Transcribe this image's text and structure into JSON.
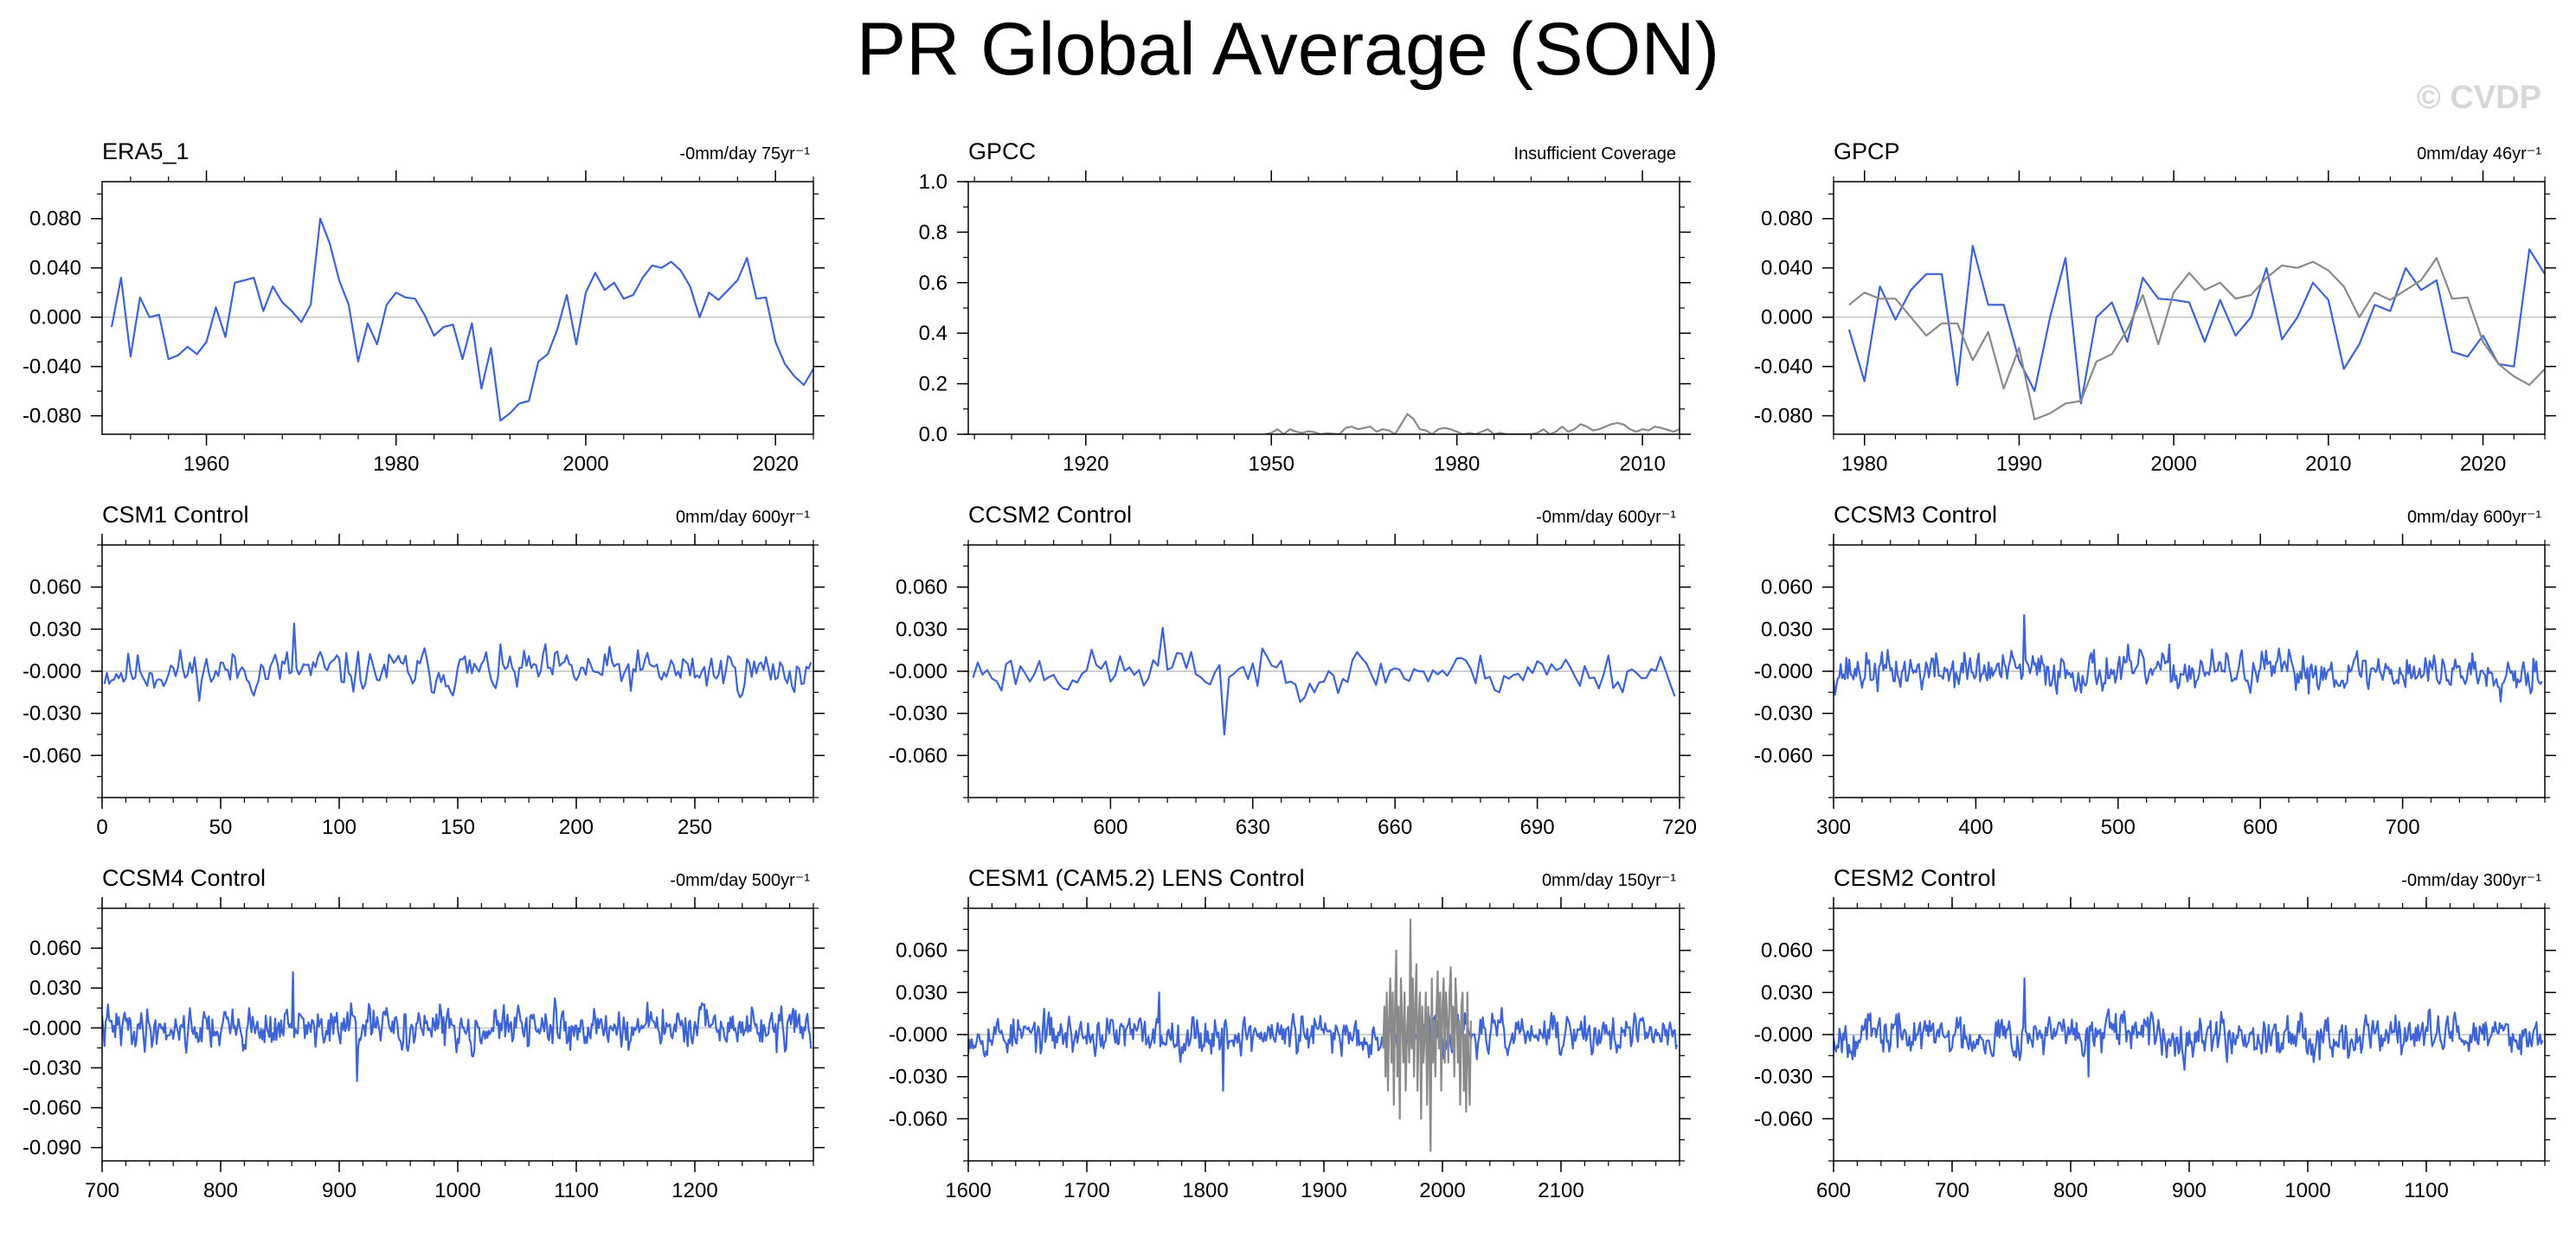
{
  "figure": {
    "title": "PR Global Average (SON)",
    "watermark": "© CVDP",
    "colors": {
      "model": "#3c64d6",
      "observed": "#8a8a8a",
      "zero": "#cfcfcf",
      "axis": "#000000"
    }
  },
  "chart_data": [
    {
      "type": "line",
      "title": "ERA5_1",
      "trend_label": "-0mm/day 75yr⁻¹",
      "xlim": [
        1949,
        2024
      ],
      "ylim": [
        -0.095,
        0.11
      ],
      "xticks": [
        1960,
        1980,
        2000,
        2020
      ],
      "yticks": [
        -0.08,
        -0.04,
        0.0,
        0.04,
        0.08
      ],
      "ytick_labels": [
        "-0.080",
        "-0.040",
        "0.000",
        "0.040",
        "0.080"
      ],
      "series": [
        {
          "role": "model",
          "x_start": 1950,
          "x_step": 1,
          "values": [
            -0.008,
            0.032,
            -0.032,
            0.016,
            0.0,
            0.002,
            -0.034,
            -0.031,
            -0.024,
            -0.03,
            -0.02,
            0.008,
            -0.016,
            0.028,
            0.03,
            0.032,
            0.005,
            0.025,
            0.012,
            0.005,
            -0.004,
            0.01,
            0.08,
            0.06,
            0.03,
            0.01,
            -0.036,
            -0.005,
            -0.022,
            0.01,
            0.02,
            0.016,
            0.015,
            0.002,
            -0.015,
            -0.008,
            -0.006,
            -0.034,
            -0.005,
            -0.058,
            -0.025,
            -0.084,
            -0.078,
            -0.07,
            -0.068,
            -0.036,
            -0.03,
            -0.01,
            0.018,
            -0.022,
            0.02,
            0.036,
            0.022,
            0.028,
            0.015,
            0.018,
            0.032,
            0.042,
            0.04,
            0.045,
            0.038,
            0.025,
            0.0,
            0.02,
            0.014,
            0.022,
            0.03,
            0.048,
            0.015,
            0.016,
            -0.02,
            -0.038,
            -0.048,
            -0.055,
            -0.042
          ]
        }
      ]
    },
    {
      "type": "line",
      "title": "GPCC",
      "trend_label": "Insufficient Coverage",
      "xlim": [
        1901,
        2016
      ],
      "ylim": [
        0.0,
        1.0
      ],
      "xticks": [
        1920,
        1950,
        1980,
        2010
      ],
      "yticks": [
        0.0,
        0.2,
        0.4,
        0.6,
        0.8,
        1.0
      ],
      "ytick_labels": [
        "0.0",
        "0.2",
        "0.4",
        "0.6",
        "0.8",
        "1.0"
      ],
      "series": [
        {
          "role": "observed",
          "x_start": 1949,
          "x_step": 1,
          "values": [
            0.0,
            0.005,
            0.02,
            0.0,
            0.02,
            0.01,
            0.005,
            0.012,
            0.008,
            0.0,
            0.004,
            0.002,
            0.0,
            0.025,
            0.03,
            0.02,
            0.025,
            0.03,
            0.01,
            0.02,
            0.015,
            0.0,
            0.04,
            0.08,
            0.06,
            0.02,
            0.015,
            0.0,
            0.02,
            0.025,
            0.02,
            0.01,
            0.0,
            0.005,
            0.0,
            0.01,
            0.02,
            0.0,
            0.005,
            0.0,
            0.0,
            0.0,
            0.0,
            0.0,
            0.005,
            0.02,
            0.0,
            0.01,
            0.03,
            0.01,
            0.02,
            0.04,
            0.03,
            0.015,
            0.02,
            0.03,
            0.04,
            0.045,
            0.038,
            0.02,
            0.01,
            0.02,
            0.015,
            0.03,
            0.025,
            0.018,
            0.01,
            0.02,
            0.0,
            0.0
          ]
        }
      ]
    },
    {
      "type": "line",
      "title": "GPCP",
      "trend_label": "0mm/day 46yr⁻¹",
      "xlim": [
        1978,
        2024
      ],
      "ylim": [
        -0.095,
        0.11
      ],
      "xticks": [
        1980,
        1990,
        2000,
        2010,
        2020
      ],
      "yticks": [
        -0.08,
        -0.04,
        0.0,
        0.04,
        0.08
      ],
      "ytick_labels": [
        "-0.080",
        "-0.040",
        "0.000",
        "0.040",
        "0.080"
      ],
      "series": [
        {
          "role": "model",
          "x_start": 1979,
          "x_step": 1,
          "values": [
            -0.01,
            -0.052,
            0.025,
            -0.002,
            0.022,
            0.035,
            0.035,
            -0.055,
            0.058,
            0.01,
            0.01,
            -0.035,
            -0.06,
            0.0,
            0.048,
            -0.07,
            0.0,
            0.012,
            -0.02,
            0.032,
            0.015,
            0.014,
            0.012,
            -0.02,
            0.014,
            -0.015,
            0.0,
            0.04,
            -0.018,
            0.0,
            0.028,
            0.014,
            -0.042,
            -0.022,
            0.01,
            0.005,
            0.04,
            0.022,
            0.03,
            -0.028,
            -0.032,
            -0.015,
            -0.038,
            -0.04,
            0.055,
            0.035
          ]
        },
        {
          "role": "observed",
          "x_start": 1979,
          "x_step": 1,
          "values": [
            0.01,
            0.02,
            0.015,
            0.015,
            0.0,
            -0.015,
            -0.005,
            -0.005,
            -0.035,
            -0.012,
            -0.058,
            -0.025,
            -0.083,
            -0.078,
            -0.07,
            -0.068,
            -0.036,
            -0.03,
            -0.01,
            0.018,
            -0.022,
            0.02,
            0.036,
            0.022,
            0.028,
            0.015,
            0.018,
            0.032,
            0.042,
            0.04,
            0.045,
            0.038,
            0.025,
            0.0,
            0.02,
            0.014,
            0.022,
            0.03,
            0.048,
            0.015,
            0.016,
            -0.02,
            -0.038,
            -0.048,
            -0.055,
            -0.042
          ]
        }
      ]
    },
    {
      "type": "line",
      "title": "CSM1 Control",
      "trend_label": "0mm/day 600yr⁻¹",
      "xlim": [
        0,
        300
      ],
      "ylim": [
        -0.09,
        0.09
      ],
      "xticks": [
        0,
        50,
        100,
        150,
        200,
        250
      ],
      "yticks": [
        -0.06,
        -0.03,
        0.0,
        0.03,
        0.06
      ],
      "ytick_labels": [
        "-0.060",
        "-0.030",
        "-0.000",
        "0.030",
        "0.060"
      ],
      "series": [
        {
          "role": "model",
          "x_start": 1,
          "x_step": 1,
          "n": 299,
          "seed": 11,
          "amplitude": 0.011,
          "peak": 0.034
        }
      ]
    },
    {
      "type": "line",
      "title": "CCSM2 Control",
      "trend_label": "-0mm/day 600yr⁻¹",
      "xlim": [
        570,
        720
      ],
      "ylim": [
        -0.09,
        0.09
      ],
      "xticks": [
        600,
        630,
        660,
        690,
        720
      ],
      "yticks": [
        -0.06,
        -0.03,
        0.0,
        0.03,
        0.06
      ],
      "ytick_labels": [
        "-0.060",
        "-0.030",
        "-0.000",
        "0.030",
        "0.060"
      ],
      "series": [
        {
          "role": "model",
          "x_start": 571,
          "x_step": 1,
          "n": 149,
          "seed": 23,
          "amplitude": 0.011,
          "peak": 0.031,
          "trough": -0.045
        }
      ]
    },
    {
      "type": "line",
      "title": "CCSM3 Control",
      "trend_label": "0mm/day 600yr⁻¹",
      "xlim": [
        300,
        800
      ],
      "ylim": [
        -0.09,
        0.09
      ],
      "xticks": [
        300,
        400,
        500,
        600,
        700
      ],
      "yticks": [
        -0.06,
        -0.03,
        0.0,
        0.03,
        0.06
      ],
      "ytick_labels": [
        "-0.060",
        "-0.030",
        "-0.000",
        "0.030",
        "0.060"
      ],
      "series": [
        {
          "role": "model",
          "x_start": 300,
          "x_step": 1,
          "n": 499,
          "seed": 37,
          "amplitude": 0.01,
          "peak": 0.04
        }
      ]
    },
    {
      "type": "line",
      "title": "CCSM4 Control",
      "trend_label": "-0mm/day 500yr⁻¹",
      "xlim": [
        700,
        1300
      ],
      "ylim": [
        -0.1,
        0.09
      ],
      "xticks": [
        700,
        800,
        900,
        1000,
        1100,
        1200
      ],
      "yticks": [
        -0.09,
        -0.06,
        -0.03,
        0.0,
        0.03,
        0.06
      ],
      "ytick_labels": [
        "-0.090",
        "-0.060",
        "-0.030",
        "-0.000",
        "0.030",
        "0.060"
      ],
      "series": [
        {
          "role": "model",
          "x_start": 700,
          "x_step": 1,
          "n": 599,
          "seed": 41,
          "amplitude": 0.011,
          "peak": 0.042,
          "trough": -0.04
        }
      ]
    },
    {
      "type": "line",
      "title": "CESM1 (CAM5.2) LENS Control",
      "trend_label": "0mm/day 150yr⁻¹",
      "xlim": [
        1600,
        2200
      ],
      "ylim": [
        -0.09,
        0.09
      ],
      "xticks": [
        1600,
        1700,
        1800,
        1900,
        2000,
        2100
      ],
      "yticks": [
        -0.06,
        -0.03,
        0.0,
        0.03,
        0.06
      ],
      "ytick_labels": [
        "-0.060",
        "-0.030",
        "-0.000",
        "0.030",
        "0.060"
      ],
      "series": [
        {
          "role": "model",
          "x_start": 1600,
          "x_step": 1,
          "n": 599,
          "seed": 53,
          "amplitude": 0.01,
          "peak": 0.03,
          "trough": -0.04
        },
        {
          "role": "observed",
          "x_start": 1950,
          "x_step": 1,
          "values": [
            -0.01,
            0.02,
            -0.03,
            0.03,
            -0.04,
            0.01,
            0.04,
            -0.02,
            0.03,
            -0.05,
            0.02,
            0.06,
            -0.03,
            0.02,
            -0.06,
            0.04,
            0.01,
            -0.02,
            0.03,
            -0.04,
            0.0,
            0.02,
            -0.02,
            0.082,
            -0.01,
            0.04,
            -0.03,
            0.02,
            0.05,
            -0.04,
            0.01,
            0.03,
            -0.06,
            0.02,
            -0.02,
            0.0,
            0.03,
            -0.05,
            0.02,
            -0.01,
            -0.083,
            0.04,
            -0.02,
            0.01,
            -0.03,
            0.02,
            0.045,
            -0.01,
            0.03,
            -0.04,
            0.02,
            0.04,
            -0.02,
            0.03,
            0.01,
            -0.02,
            0.03,
            0.048,
            -0.01,
            0.02,
            -0.03,
            0.04,
            0.02,
            -0.02,
            0.01,
            -0.05,
            0.02,
            0.03,
            -0.04,
            0.0,
            -0.055,
            0.03,
            -0.02,
            -0.05,
            0.01
          ]
        }
      ]
    },
    {
      "type": "line",
      "title": "CESM2 Control",
      "trend_label": "-0mm/day 300yr⁻¹",
      "xlim": [
        600,
        1200
      ],
      "ylim": [
        -0.09,
        0.09
      ],
      "xticks": [
        600,
        700,
        800,
        900,
        1000,
        1100
      ],
      "yticks": [
        -0.06,
        -0.03,
        0.0,
        0.03,
        0.06
      ],
      "ytick_labels": [
        "-0.060",
        "-0.030",
        "-0.000",
        "0.030",
        "0.060"
      ],
      "series": [
        {
          "role": "model",
          "x_start": 600,
          "x_step": 1,
          "n": 599,
          "seed": 67,
          "amplitude": 0.0105,
          "peak": 0.04,
          "trough": -0.03
        }
      ]
    }
  ]
}
